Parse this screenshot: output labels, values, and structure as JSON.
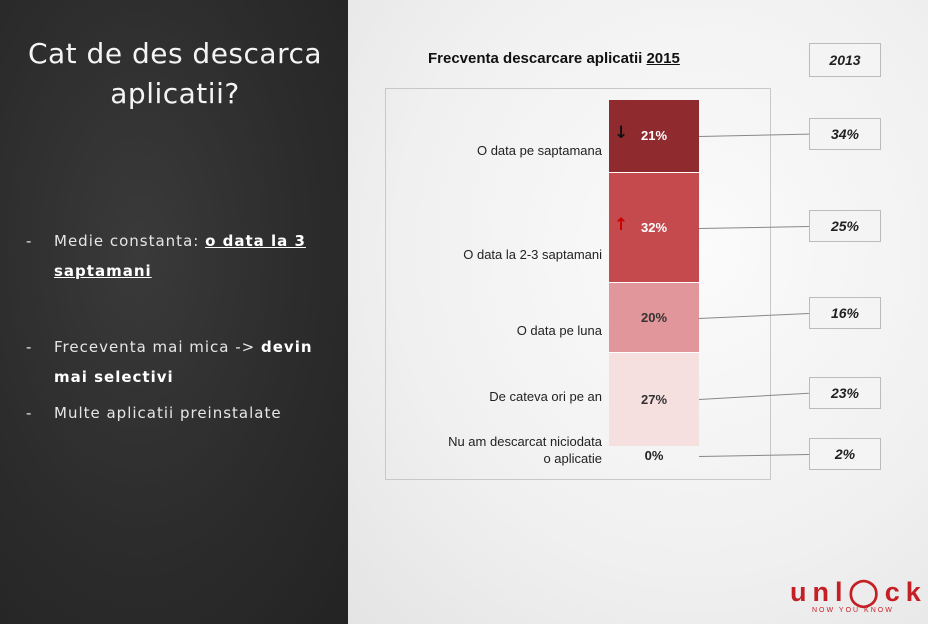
{
  "slide": {
    "title_line1": "Cat de des descarca",
    "title_line2": "aplicatii?",
    "bullets": [
      {
        "dash": "-",
        "text_plain": "Medie constanta: ",
        "text_bold": "o data la 3 saptamani"
      },
      {
        "dash": "-",
        "text_plain": "Freceventa mai mica -> ",
        "text_bold": "devin mai selectivi"
      },
      {
        "dash": "-",
        "text_plain": "Multe aplicatii preinstalate"
      }
    ]
  },
  "chart_data": {
    "type": "bar",
    "stacked": true,
    "title": "Frecventa descarcare aplicatii",
    "title_year": "2015",
    "comparison_year_label": "2013",
    "categories": [
      "O data pe saptamana",
      "O data la 2-3 saptamani",
      "O data pe luna",
      "De cateva ori pe an",
      "Nu am descarcat niciodata o aplicatie"
    ],
    "category_label_lines": [
      [
        "O data pe saptamana"
      ],
      [
        "O data la 2-3 saptamani"
      ],
      [
        "O data pe luna"
      ],
      [
        "De cateva ori pe an"
      ],
      [
        "Nu am descarcat niciodata",
        "o aplicatie"
      ]
    ],
    "values_2015": [
      21,
      32,
      20,
      27,
      0
    ],
    "labels_2015": [
      "21%",
      "32%",
      "20%",
      "27%",
      "0%"
    ],
    "values_2013": [
      34,
      25,
      16,
      23,
      2
    ],
    "labels_2013": [
      "34%",
      "25%",
      "16%",
      "23%",
      "2%"
    ],
    "trend_arrows": [
      "down",
      "up",
      null,
      null,
      null
    ],
    "segment_colors": [
      "#8f2a2e",
      "#c44a4e",
      "#e0969a",
      "#f6dfdf"
    ],
    "arrow_colors": {
      "down": "#111111",
      "up": "#cc0000"
    }
  },
  "logo": {
    "word": "unl◯ck",
    "tagline": "NOW YOU KNOW",
    "color": "#c41f25"
  }
}
